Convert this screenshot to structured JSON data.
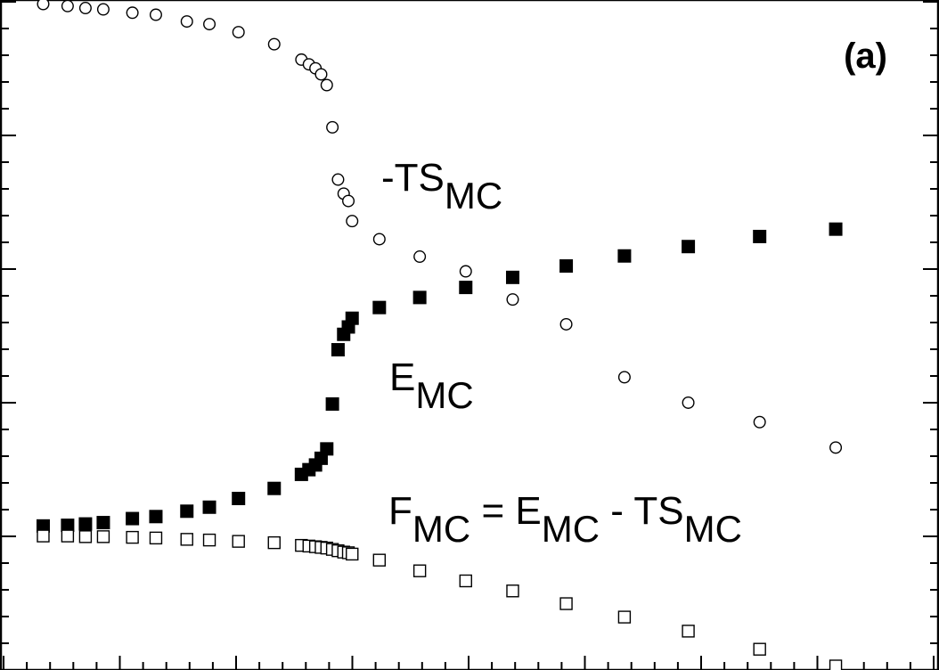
{
  "chart_data": {
    "type": "scatter",
    "panel_label": "(a)",
    "title": "",
    "xlabel": "",
    "ylabel": "",
    "grid": false,
    "xlim": [
      0,
      100
    ],
    "ylim": [
      0,
      100
    ],
    "series": [
      {
        "name": "-TSMC",
        "label_main": "-TS",
        "label_sub": "MC",
        "marker": "open-circle",
        "color": "#000000",
        "x": [
          4.6,
          7.2,
          9.1,
          11.0,
          14.1,
          16.6,
          19.9,
          22.3,
          25.4,
          29.2,
          32.1,
          32.9,
          33.6,
          34.2,
          34.8,
          35.4,
          36.0,
          36.6,
          37.1,
          37.5,
          40.4,
          44.7,
          49.6,
          54.6,
          60.3,
          66.5,
          73.3,
          80.9,
          89.0
        ],
        "y": [
          99.4,
          99.1,
          98.8,
          98.6,
          98.1,
          97.8,
          96.8,
          96.4,
          95.2,
          93.4,
          91.1,
          90.4,
          89.8,
          88.9,
          87.3,
          81.0,
          73.2,
          71.1,
          70.0,
          67.0,
          64.3,
          61.7,
          59.5,
          55.3,
          51.6,
          43.7,
          39.9,
          37.0,
          33.2
        ]
      },
      {
        "name": "EMC",
        "label_main": "E",
        "label_sub": "MC",
        "marker": "filled-square",
        "color": "#000000",
        "x": [
          4.6,
          7.2,
          9.1,
          11.0,
          14.1,
          16.6,
          19.9,
          22.3,
          25.4,
          29.2,
          32.1,
          32.9,
          33.6,
          34.2,
          34.8,
          35.4,
          36.0,
          36.6,
          37.1,
          37.5,
          40.4,
          44.7,
          49.6,
          54.6,
          60.3,
          66.5,
          73.3,
          80.9,
          89.0
        ],
        "y": [
          21.5,
          21.6,
          21.8,
          22.0,
          22.6,
          22.9,
          23.7,
          24.3,
          25.6,
          27.1,
          29.2,
          29.9,
          30.6,
          31.6,
          33.0,
          39.7,
          47.8,
          50.1,
          51.2,
          52.5,
          54.1,
          55.6,
          57.1,
          58.6,
          60.3,
          61.8,
          63.2,
          64.7,
          65.8
        ]
      },
      {
        "name": "FMC = EMC - TSMC",
        "label_main": "F",
        "label_parts": [
          "F",
          "MC",
          " = E",
          "MC",
          " - TS",
          "MC"
        ],
        "marker": "open-square",
        "color": "#000000",
        "x": [
          4.6,
          7.2,
          9.1,
          11.0,
          14.1,
          16.6,
          19.9,
          22.3,
          25.4,
          29.2,
          32.1,
          32.9,
          33.6,
          34.2,
          34.8,
          35.4,
          36.0,
          36.6,
          37.1,
          37.5,
          40.4,
          44.7,
          49.6,
          54.6,
          60.3,
          66.5,
          73.3,
          80.9,
          89.0
        ],
        "y": [
          20.0,
          20.0,
          19.9,
          19.9,
          19.8,
          19.7,
          19.5,
          19.4,
          19.2,
          19.0,
          18.6,
          18.5,
          18.4,
          18.3,
          18.2,
          18.0,
          17.8,
          17.6,
          17.5,
          17.3,
          16.4,
          14.8,
          13.3,
          11.8,
          9.9,
          7.9,
          5.8,
          3.1,
          0.6
        ]
      }
    ]
  }
}
